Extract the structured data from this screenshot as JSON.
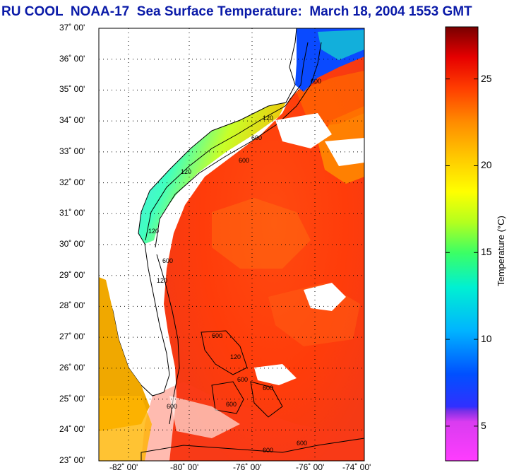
{
  "title": "RU COOL  NOAA-17  Sea Surface Temperature:  March 18, 2004 1553 GMT",
  "map": {
    "lat_labels": [
      "37˚ 00'",
      "36˚ 00'",
      "35˚ 00'",
      "34˚ 00'",
      "33˚ 00'",
      "32˚ 00'",
      "31˚ 00'",
      "30˚ 00'",
      "29˚ 00'",
      "28˚ 00'",
      "27˚ 00'",
      "26˚ 00'",
      "25˚ 00'",
      "24˚ 00'",
      "23˚ 00'"
    ],
    "lon_labels": [
      "-82˚ 00'",
      "-80˚ 00'",
      "-76˚ 00'",
      "-76˚ 00'",
      "-74˚ 00'"
    ],
    "contour_labels": [
      "600",
      "120",
      "600",
      "120",
      "600",
      "120",
      "600",
      "120",
      "600",
      "120",
      "600",
      "600",
      "600",
      "600",
      "600",
      "600"
    ]
  },
  "colorbar": {
    "ticks": [
      {
        "label": "25",
        "value": 25
      },
      {
        "label": "20",
        "value": 20
      },
      {
        "label": "15",
        "value": 15
      },
      {
        "label": "10",
        "value": 10
      },
      {
        "label": "5",
        "value": 5
      }
    ],
    "label": "Temperature (°C)",
    "range": [
      3,
      28
    ]
  }
}
